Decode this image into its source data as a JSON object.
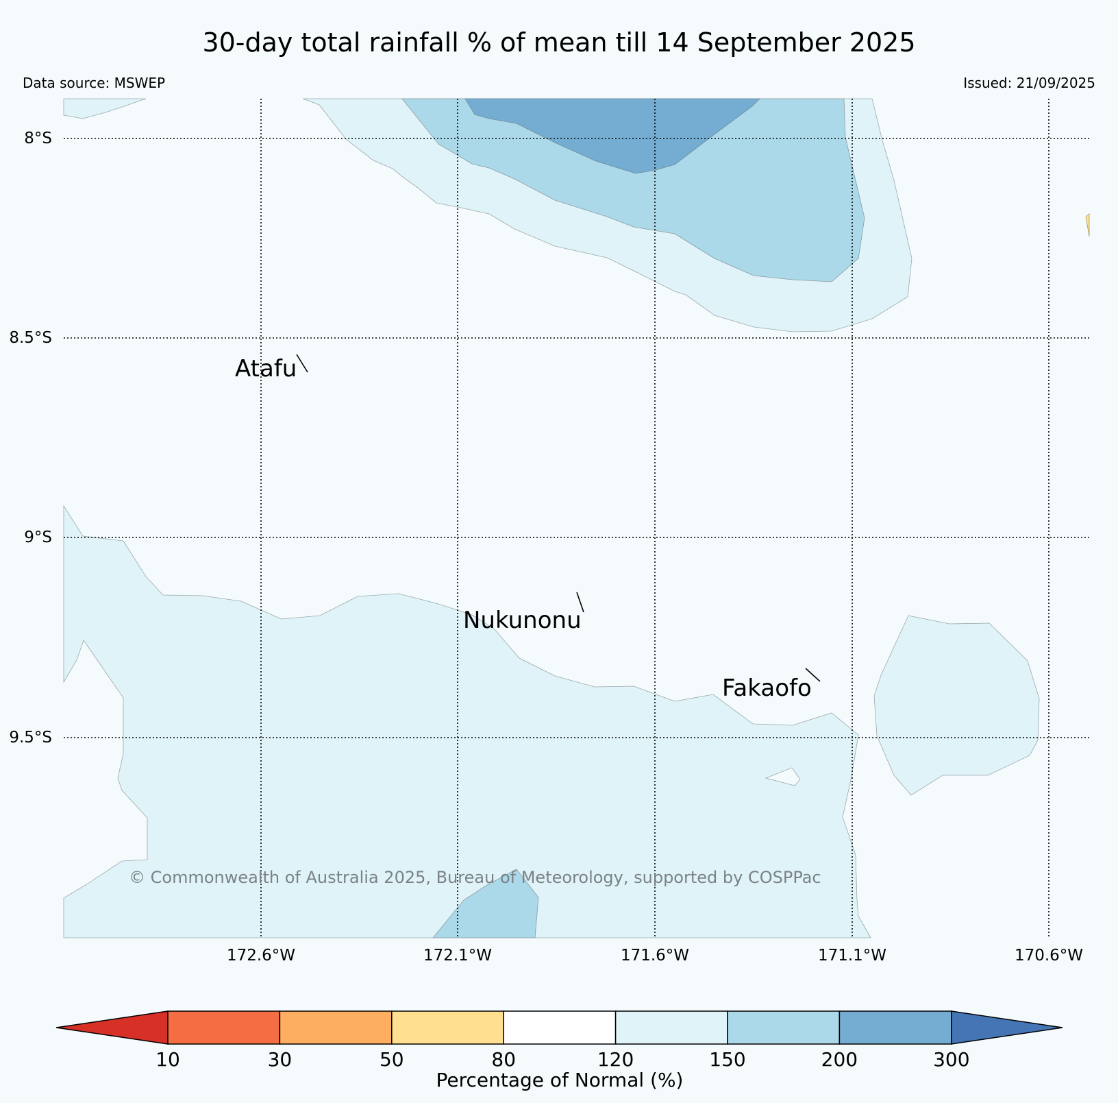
{
  "title": "30-day total rainfall % of mean till 14 September 2025",
  "data_source": "Data source: MSWEP",
  "issued": "Issued: 21/09/2025",
  "map": {
    "lat_labels": [
      "8°S",
      "8.5°S",
      "9°S",
      "9.5°S"
    ],
    "lon_labels": [
      "172.6°W",
      "172.1°W",
      "171.6°W",
      "171.1°W",
      "170.6°W"
    ],
    "places": [
      "Atafu",
      "Nukunonu",
      "Fakaofo"
    ],
    "copyright": "© Commonwealth of Australia 2025, Bureau of Meteorology, supported by COSPPac"
  },
  "colorbar": {
    "label": "Percentage of Normal (%)",
    "ticks": [
      "10",
      "30",
      "50",
      "80",
      "120",
      "150",
      "200",
      "300"
    ],
    "colors": [
      "#d73027",
      "#f46d43",
      "#fdae61",
      "#fee090",
      "#ffffff",
      "#e0f3f8",
      "#abd9e9",
      "#74add1",
      "#4575b4"
    ]
  },
  "colors": {
    "background": "#f5fbfc",
    "band_120_150": "#e0f3f8",
    "band_150_200": "#abd9e9",
    "band_200_300": "#74add1"
  }
}
